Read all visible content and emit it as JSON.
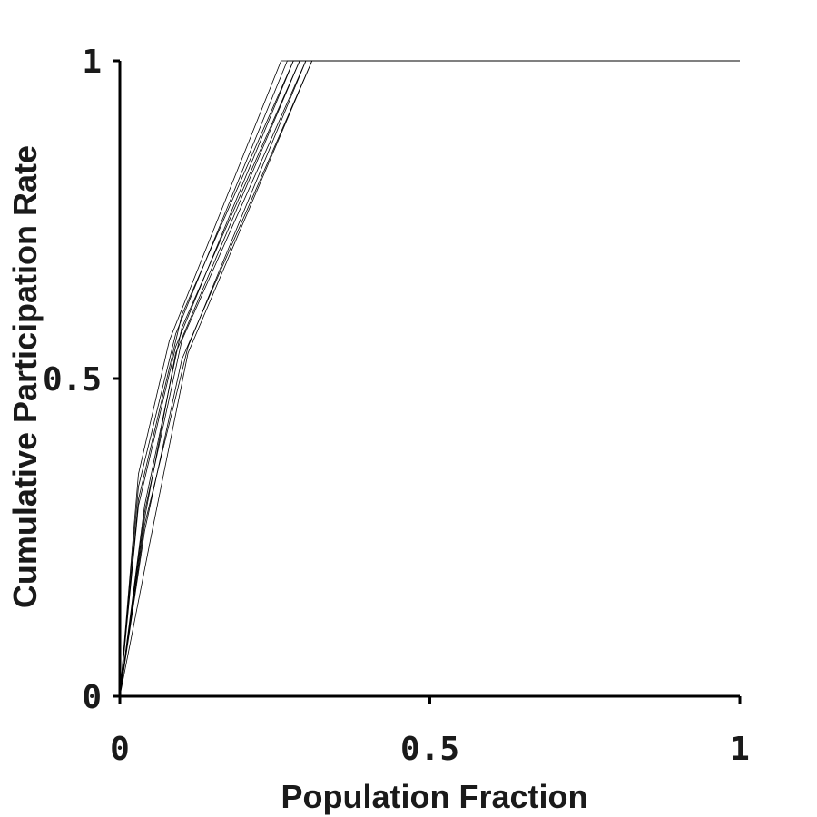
{
  "chart_data": {
    "type": "line",
    "title": "",
    "xlabel": "Population Fraction",
    "ylabel": "Cumulative Participation Rate",
    "xlim": [
      0,
      1
    ],
    "ylim": [
      0,
      1
    ],
    "x_ticks": [
      {
        "value": 0,
        "label": "0"
      },
      {
        "value": 0.5,
        "label": "0.5"
      },
      {
        "value": 1,
        "label": "1"
      }
    ],
    "y_ticks": [
      {
        "value": 0,
        "label": "0"
      },
      {
        "value": 0.5,
        "label": "0.5"
      },
      {
        "value": 1,
        "label": "1"
      }
    ],
    "grid": false,
    "legend": "none",
    "line_color": "#000000",
    "series": [
      {
        "x": [
          0,
          0.03,
          0.08,
          0.26,
          1
        ],
        "y": [
          0,
          0.35,
          0.56,
          1,
          1
        ]
      },
      {
        "x": [
          0,
          0.03,
          0.09,
          0.27,
          1
        ],
        "y": [
          0,
          0.33,
          0.57,
          1,
          1
        ]
      },
      {
        "x": [
          0,
          0.03,
          0.1,
          0.28,
          1
        ],
        "y": [
          0,
          0.31,
          0.6,
          1,
          1
        ]
      },
      {
        "x": [
          0,
          0.03,
          0.09,
          0.28,
          1
        ],
        "y": [
          0,
          0.3,
          0.55,
          1,
          1
        ]
      },
      {
        "x": [
          0,
          0.04,
          0.1,
          0.29,
          1
        ],
        "y": [
          0,
          0.3,
          0.58,
          1,
          1
        ]
      },
      {
        "x": [
          0,
          0.04,
          0.09,
          0.29,
          1
        ],
        "y": [
          0,
          0.28,
          0.54,
          1,
          1
        ]
      },
      {
        "x": [
          0,
          0.04,
          0.1,
          0.3,
          1
        ],
        "y": [
          0,
          0.29,
          0.56,
          1,
          1
        ]
      },
      {
        "x": [
          0,
          0.04,
          0.11,
          0.3,
          1
        ],
        "y": [
          0,
          0.27,
          0.55,
          1,
          1
        ]
      },
      {
        "x": [
          0,
          0.04,
          0.1,
          0.31,
          1
        ],
        "y": [
          0,
          0.26,
          0.53,
          1,
          1
        ]
      },
      {
        "x": [
          0,
          0.05,
          0.11,
          0.31,
          1
        ],
        "y": [
          0,
          0.25,
          0.54,
          1,
          1
        ]
      }
    ]
  }
}
